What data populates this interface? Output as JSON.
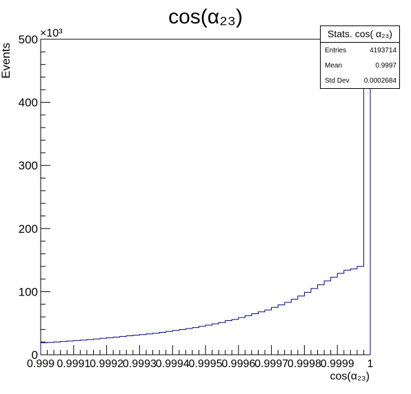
{
  "chart_data": {
    "type": "histogram",
    "title": "cos(α₂₃)",
    "xlabel": "cos(α₂₃)",
    "ylabel": "Events",
    "y_multiplier_label": "×10³",
    "xlim": [
      0.999,
      1.0
    ],
    "ylim": [
      0,
      500
    ],
    "x_tick_labels": [
      "0.999",
      "0.9991",
      "0.9992",
      "0.9993",
      "0.9994",
      "0.9995",
      "0.9996",
      "0.9997",
      "0.9998",
      "0.9999",
      "1"
    ],
    "y_tick_labels": [
      "0",
      "100",
      "200",
      "300",
      "400",
      "500"
    ],
    "bin_width": 2e-05,
    "bin_low_edges": [
      0.999,
      0.99902,
      0.99904,
      0.99906,
      0.99908,
      0.9991,
      0.99912,
      0.99914,
      0.99916,
      0.99918,
      0.9992,
      0.99922,
      0.99924,
      0.99926,
      0.99928,
      0.9993,
      0.99932,
      0.99934,
      0.99936,
      0.99938,
      0.9994,
      0.99942,
      0.99944,
      0.99946,
      0.99948,
      0.9995,
      0.99952,
      0.99954,
      0.99956,
      0.99958,
      0.9996,
      0.99962,
      0.99964,
      0.99966,
      0.99968,
      0.9997,
      0.99972,
      0.99974,
      0.99976,
      0.99978,
      0.9998,
      0.99982,
      0.99984,
      0.99986,
      0.99988,
      0.9999,
      0.99992,
      0.99994,
      0.99996,
      0.99998
    ],
    "values": [
      19,
      19.5,
      20.2,
      21,
      21.8,
      22.5,
      23.2,
      24,
      25,
      26,
      27,
      28,
      29,
      30,
      31,
      32,
      33,
      34,
      35.5,
      37,
      38.5,
      40,
      41.5,
      43,
      45,
      47,
      49,
      51,
      54,
      56,
      59,
      62,
      65,
      68,
      71,
      75,
      79,
      83,
      88,
      93,
      99,
      105,
      111,
      117,
      123,
      129,
      134,
      136,
      140,
      490
    ],
    "line_color": "#00007f",
    "stats": {
      "title": "Stats. cos( α₂₃)",
      "entries_label": "Entries",
      "entries": "4193714",
      "mean_label": "Mean",
      "mean": "0.9997",
      "stddev_label": "Std Dev",
      "stddev": "0.0002684"
    }
  }
}
